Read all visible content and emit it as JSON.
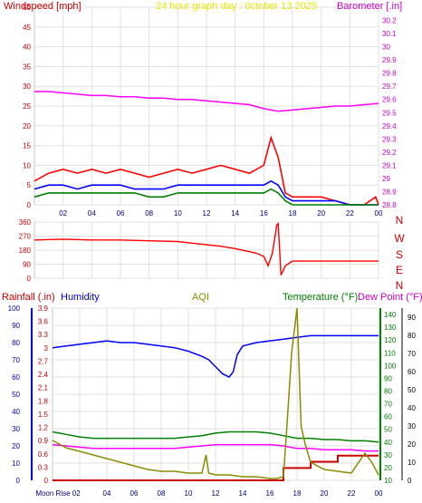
{
  "colors": {
    "wind_red": "#ff0000",
    "wind_blue": "#0000ff",
    "wind_green": "#008000",
    "baro": "#ff00ff",
    "dir": "#ff0000",
    "dir_labels": "#cc0000",
    "rain": "#cc0000",
    "humidity": "#0000ff",
    "aqi": "#8b8b00",
    "temperature": "#008000",
    "dewpoint": "#ff00ff",
    "title_yellow": "#e8e800",
    "grid": "#e0e0e0",
    "axis": "#c8c8c8"
  },
  "chart_data": [
    {
      "type": "line",
      "title": "24 hour graph day : 0ctober 13 2025",
      "left_axis_label": "Windspeed [mph]",
      "right_axis_label": "Barometer [.in]",
      "ylim_left": [
        0,
        50
      ],
      "ylim_right": [
        28.8,
        30.3
      ],
      "left_ticks": [
        "50",
        "45",
        "40",
        "35",
        "30",
        "25",
        "20",
        "15",
        "10",
        "5",
        "0"
      ],
      "right_ticks": [
        "30.2",
        "30.1",
        "30",
        "29.9",
        "29.8",
        "29.7",
        "29.6",
        "29.5",
        "29.4",
        "29.3",
        "29.2",
        "29.1",
        "29",
        "28.9",
        "28.8"
      ],
      "x_ticks": [
        "02",
        "04",
        "06",
        "08",
        "10",
        "12",
        "14",
        "16",
        "18",
        "20",
        "22",
        "00"
      ],
      "xlim": [
        0,
        24
      ],
      "grid": true,
      "series": [
        {
          "role": "gust",
          "color_key": "wind_red",
          "axis": "left",
          "x": [
            0,
            1,
            2,
            3,
            4,
            5,
            6,
            7,
            8,
            9,
            10,
            11,
            12,
            13,
            14,
            15,
            16,
            16.5,
            17,
            17.5,
            18,
            19,
            20,
            21,
            22,
            22.6,
            23,
            23.8,
            24
          ],
          "values": [
            6,
            8,
            9,
            8,
            9,
            8,
            9,
            8,
            7,
            8,
            9,
            8,
            9,
            10,
            9,
            8,
            10,
            17,
            12,
            3,
            2,
            2,
            2,
            1,
            0,
            0,
            0,
            2,
            0
          ]
        },
        {
          "role": "average",
          "color_key": "wind_blue",
          "axis": "left",
          "x": [
            0,
            1,
            2,
            3,
            4,
            5,
            6,
            7,
            8,
            9,
            10,
            11,
            12,
            13,
            14,
            15,
            16,
            16.5,
            17,
            17.5,
            18,
            19,
            20,
            21,
            22,
            23,
            24
          ],
          "values": [
            4,
            5,
            5,
            4,
            5,
            5,
            5,
            4,
            4,
            4,
            5,
            5,
            5,
            5,
            5,
            5,
            5,
            6,
            5,
            2,
            1,
            1,
            1,
            1,
            0,
            0,
            0
          ]
        },
        {
          "role": "speed",
          "color_key": "wind_green",
          "axis": "left",
          "x": [
            0,
            1,
            2,
            3,
            4,
            5,
            6,
            7,
            8,
            9,
            10,
            11,
            12,
            13,
            14,
            15,
            16,
            16.5,
            17,
            17.5,
            18,
            19,
            20,
            21,
            22,
            23,
            24
          ],
          "values": [
            2,
            3,
            3,
            3,
            3,
            3,
            3,
            3,
            2,
            2,
            3,
            3,
            3,
            3,
            3,
            3,
            3,
            4,
            3,
            1,
            0,
            0,
            0,
            0,
            0,
            0,
            0
          ]
        },
        {
          "role": "barometer",
          "color_key": "baro",
          "axis": "right",
          "x": [
            0,
            1,
            2,
            3,
            4,
            5,
            6,
            7,
            8,
            9,
            10,
            11,
            12,
            13,
            14,
            15,
            16,
            17,
            18,
            19,
            20,
            21,
            22,
            23,
            24
          ],
          "values": [
            29.66,
            29.66,
            29.65,
            29.64,
            29.63,
            29.63,
            29.62,
            29.62,
            29.61,
            29.61,
            29.6,
            29.6,
            29.59,
            29.58,
            29.57,
            29.56,
            29.53,
            29.51,
            29.52,
            29.53,
            29.54,
            29.55,
            29.55,
            29.56,
            29.57
          ]
        }
      ]
    },
    {
      "type": "line",
      "ylim": [
        0,
        360
      ],
      "left_ticks": [
        "360",
        "270",
        "180",
        "90",
        "0"
      ],
      "right_labels": [
        "N",
        "W",
        "S",
        "E",
        "N"
      ],
      "x_ticks": [],
      "xlim": [
        0,
        24
      ],
      "grid": true,
      "series": [
        {
          "role": "direction",
          "color_key": "dir",
          "x": [
            0,
            2,
            4,
            6,
            8,
            10,
            11,
            12,
            13,
            14,
            15,
            15.5,
            16,
            16.3,
            16.6,
            16.9,
            17,
            17.2,
            17.5,
            18,
            19,
            20,
            22,
            24
          ],
          "values": [
            245,
            250,
            245,
            245,
            240,
            235,
            225,
            215,
            205,
            190,
            170,
            160,
            140,
            80,
            160,
            340,
            350,
            20,
            80,
            110,
            110,
            110,
            110,
            110
          ]
        }
      ]
    },
    {
      "type": "line",
      "labels": {
        "rain": "Rainfall (.in)",
        "humidity": "Humidity",
        "aqi": "AQI",
        "temperature": "Temperature (°F)",
        "dewpoint": "Dew Point (°F)"
      },
      "humidity_ticks": [
        "100",
        "90",
        "80",
        "70",
        "60",
        "50",
        "40",
        "30",
        "20",
        "10",
        "0"
      ],
      "rain_ticks": [
        "3.9",
        "3.6",
        "3.3",
        "3",
        "2.7",
        "2.4",
        "2.1",
        "1.8",
        "1.5",
        "1.2",
        "0.9",
        "0.6",
        "0.3",
        "0"
      ],
      "temp_ticks": [
        "140",
        "130",
        "120",
        "110",
        "100",
        "90",
        "80",
        "70",
        "60",
        "50",
        "40",
        "30",
        "20",
        "10"
      ],
      "aqi_ticks": [
        "90",
        "80",
        "70",
        "60",
        "50",
        "40",
        "30",
        "20",
        "10",
        "0"
      ],
      "x_ticks": [
        "Moon Rise 02",
        "04",
        "06",
        "08",
        "10",
        "12",
        "14",
        "16",
        "18",
        "20",
        "22",
        "00"
      ],
      "xlim": [
        0,
        24
      ],
      "grid": true,
      "series": [
        {
          "role": "humidity",
          "color_key": "humidity",
          "ylim": [
            0,
            100
          ],
          "x": [
            0,
            1,
            2,
            3,
            4,
            5,
            6,
            7,
            8,
            9,
            10,
            11,
            11.5,
            12,
            12.5,
            13,
            13.3,
            13.6,
            14,
            15,
            16,
            17,
            18,
            19,
            20,
            21,
            22,
            23,
            24
          ],
          "values": [
            77,
            78,
            79,
            80,
            81,
            80,
            80,
            79,
            78,
            77,
            75,
            72,
            70,
            66,
            62,
            60,
            63,
            73,
            78,
            80,
            81,
            82,
            83,
            84,
            84,
            84,
            84,
            84,
            84
          ]
        },
        {
          "role": "temperature",
          "color_key": "temperature",
          "ylim": [
            10,
            145
          ],
          "x": [
            0,
            1,
            2,
            3,
            4,
            5,
            6,
            7,
            8,
            9,
            10,
            11,
            12,
            13,
            14,
            15,
            16,
            17,
            18,
            19,
            20,
            21,
            22,
            23,
            24
          ],
          "values": [
            48,
            46,
            44,
            43,
            43,
            43,
            43,
            43,
            43,
            43,
            44,
            45,
            47,
            48,
            48,
            48,
            47,
            45,
            43,
            43,
            42,
            42,
            41,
            41,
            40
          ]
        },
        {
          "role": "dewpoint",
          "color_key": "dewpoint",
          "ylim": [
            10,
            145
          ],
          "x": [
            0,
            1,
            2,
            3,
            4,
            5,
            6,
            7,
            8,
            9,
            10,
            11,
            12,
            13,
            14,
            15,
            16,
            17,
            18,
            19,
            20,
            21,
            22,
            23,
            24
          ],
          "values": [
            38,
            37,
            36,
            35,
            35,
            35,
            35,
            35,
            35,
            35,
            36,
            37,
            38,
            38,
            38,
            38,
            38,
            37,
            35,
            35,
            34,
            34,
            34,
            33,
            33
          ]
        },
        {
          "role": "rain",
          "color_key": "rain",
          "ylim": [
            0,
            3.9
          ],
          "x": [
            0,
            17,
            17,
            19,
            19,
            21,
            21,
            24
          ],
          "values": [
            0,
            0,
            0.28,
            0.28,
            0.42,
            0.42,
            0.56,
            0.56
          ]
        },
        {
          "role": "aqi",
          "color_key": "aqi",
          "ylim": [
            0,
            95
          ],
          "x": [
            0,
            0.5,
            1,
            2,
            3,
            4,
            5,
            6,
            7,
            8,
            9,
            10,
            11,
            11.3,
            11.5,
            12,
            13,
            14,
            15,
            16,
            16.5,
            17,
            17.3,
            17.6,
            18,
            18.3,
            18.6,
            19,
            20,
            21,
            22,
            23,
            23.5,
            24
          ],
          "values": [
            22,
            20,
            18,
            16,
            14,
            12,
            10,
            8,
            6,
            5,
            5,
            4,
            4,
            14,
            4,
            3,
            3,
            2,
            2,
            1,
            1,
            2,
            35,
            70,
            95,
            30,
            20,
            10,
            6,
            5,
            4,
            15,
            10,
            3
          ]
        }
      ]
    }
  ]
}
